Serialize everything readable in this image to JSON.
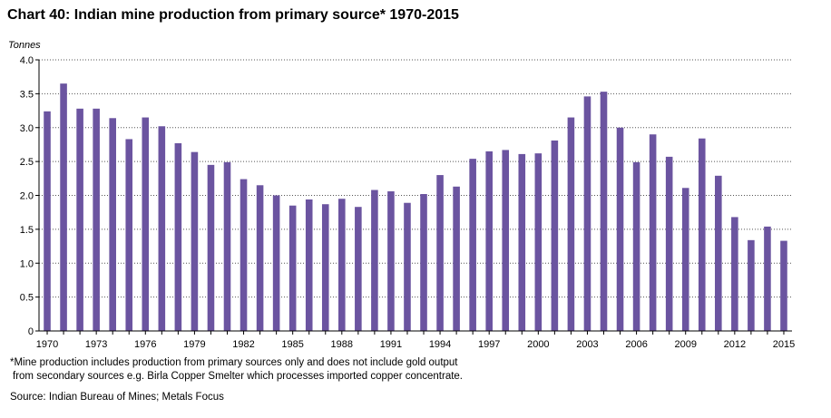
{
  "title": "Chart 40: Indian mine production from primary source* 1970-2015",
  "unit_label": "Tonnes",
  "footnote_line1": "*Mine production includes production from primary sources only and does not include gold output",
  "footnote_line2": "from secondary sources e.g. Birla Copper Smelter which processes imported copper concentrate.",
  "source": "Source: Indian Bureau of Mines; Metals Focus",
  "colors": {
    "bar": "#6b54a0",
    "grid": "#555555",
    "axis": "#000000"
  },
  "chart_data": {
    "type": "bar",
    "title": "Chart 40: Indian mine production from primary source* 1970-2015",
    "ylabel": "Tonnes",
    "xlabel": "",
    "ylim": [
      0,
      4.0
    ],
    "yticks": [
      "0",
      "0.5",
      "1.0",
      "1.5",
      "2.0",
      "2.5",
      "3.0",
      "3.5",
      "4.0"
    ],
    "grid": true,
    "categories": [
      "1970",
      "1971",
      "1972",
      "1973",
      "1974",
      "1975",
      "1976",
      "1977",
      "1978",
      "1979",
      "1980",
      "1981",
      "1982",
      "1983",
      "1984",
      "1985",
      "1986",
      "1987",
      "1988",
      "1989",
      "1990",
      "1991",
      "1992",
      "1993",
      "1994",
      "1995",
      "1996",
      "1997",
      "1998",
      "1999",
      "2000",
      "2001",
      "2002",
      "2003",
      "2004",
      "2005",
      "2006",
      "2007",
      "2008",
      "2009",
      "2010",
      "2011",
      "2012",
      "2013",
      "2014",
      "2015"
    ],
    "tick_labels": [
      "1970",
      "1973",
      "1976",
      "1979",
      "1982",
      "1985",
      "1988",
      "1991",
      "1994",
      "1997",
      "2000",
      "2003",
      "2006",
      "2009",
      "2012",
      "2015"
    ],
    "values": [
      3.24,
      3.65,
      3.28,
      3.28,
      3.14,
      2.83,
      3.15,
      3.02,
      2.77,
      2.64,
      2.45,
      2.49,
      2.24,
      2.15,
      2.0,
      1.85,
      1.94,
      1.87,
      1.95,
      1.83,
      2.08,
      2.06,
      1.89,
      2.02,
      2.3,
      2.13,
      2.54,
      2.65,
      2.67,
      2.61,
      2.62,
      2.81,
      3.15,
      3.46,
      3.53,
      3.0,
      2.49,
      2.9,
      2.57,
      2.11,
      2.84,
      2.29,
      1.68,
      1.34,
      1.54,
      1.33
    ]
  }
}
